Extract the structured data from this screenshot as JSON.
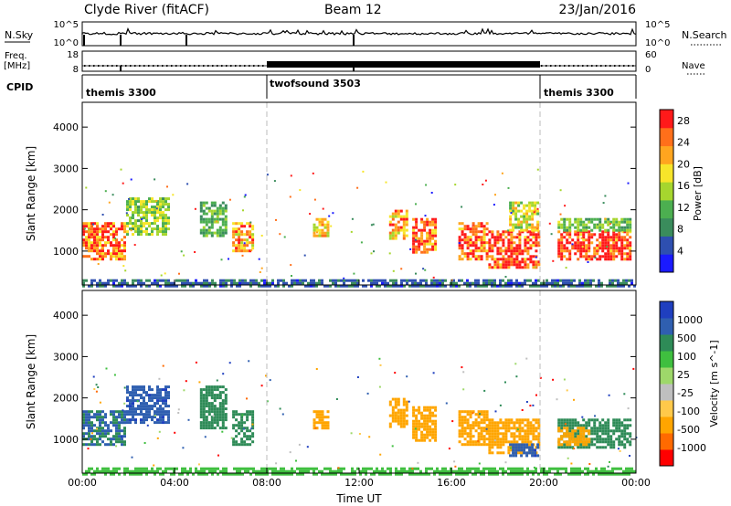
{
  "header": {
    "station": "Clyde River (fitACF)",
    "beam": "Beam 12",
    "date": "23/Jan/2016"
  },
  "strips": {
    "nsky_label": "N.Sky",
    "nsky_ticks": [
      "10^5",
      "10^0"
    ],
    "nsearch_label": "N.Search",
    "nsearch_ticks": [
      "10^5",
      "10^0"
    ],
    "freq_label_1": "Freq.",
    "freq_label_2": "[MHz]",
    "freq_ticks": [
      "18",
      "8"
    ],
    "nave_label": "Nave",
    "nave_ticks": [
      "60",
      "0"
    ],
    "cpid_label": "CPID",
    "cpid_segments": [
      {
        "label": "themis 3300",
        "start": 0,
        "end": 8
      },
      {
        "label": "twofsound 3503",
        "start": 8,
        "end": 20
      },
      {
        "label": "themis 3300",
        "start": 20,
        "end": 24
      }
    ]
  },
  "colors": {
    "power": [
      "#1a1aff",
      "#2e4fb0",
      "#3a8c5c",
      "#4caf50",
      "#a6d62e",
      "#f7e52a",
      "#ffa51f",
      "#ff6f1a",
      "#ff1a1a"
    ],
    "velocity": [
      "#ff0000",
      "#ff6a00",
      "#ffa500",
      "#ffc94a",
      "#bfbfbf",
      "#9ed86a",
      "#3fbf3f",
      "#2e8b57",
      "#2f5fb0",
      "#1f3fbf"
    ]
  },
  "chart_data": [
    {
      "type": "heatmap",
      "name": "power",
      "xlabel": "Time UT",
      "ylabel": "Slant Range [km]",
      "xlim": [
        0,
        24
      ],
      "ylim": [
        180,
        4600
      ],
      "x_ticks": [
        "00:00",
        "04:00",
        "08:00",
        "12:00",
        "16:00",
        "20:00",
        "00:00"
      ],
      "y_ticks": [
        1000,
        2000,
        3000,
        4000
      ],
      "colorbar_label": "Power [dB]",
      "colorbar_ticks": [
        "4",
        "8",
        "12",
        "16",
        "20",
        "24",
        "28"
      ],
      "colorbar_range": [
        0,
        30
      ],
      "regions": [
        {
          "t0": 0.0,
          "t1": 1.9,
          "r0": 800,
          "r1": 1700,
          "v": 25
        },
        {
          "t0": 1.9,
          "t1": 3.8,
          "r0": 1400,
          "r1": 2300,
          "v": 14
        },
        {
          "t0": 5.1,
          "t1": 6.2,
          "r0": 1400,
          "r1": 2200,
          "v": 12
        },
        {
          "t0": 6.5,
          "t1": 7.4,
          "r0": 1000,
          "r1": 1700,
          "v": 22
        },
        {
          "t0": 10.0,
          "t1": 10.6,
          "r0": 1400,
          "r1": 1800,
          "v": 20
        },
        {
          "t0": 13.3,
          "t1": 14.1,
          "r0": 1300,
          "r1": 2000,
          "v": 22
        },
        {
          "t0": 14.3,
          "t1": 15.3,
          "r0": 1000,
          "r1": 1800,
          "v": 24
        },
        {
          "t0": 16.3,
          "t1": 17.6,
          "r0": 800,
          "r1": 1700,
          "v": 26
        },
        {
          "t0": 17.6,
          "t1": 19.8,
          "r0": 600,
          "r1": 1500,
          "v": 27
        },
        {
          "t0": 18.5,
          "t1": 19.8,
          "r0": 1500,
          "r1": 2200,
          "v": 16
        },
        {
          "t0": 20.6,
          "t1": 23.8,
          "r0": 800,
          "r1": 1500,
          "v": 28
        },
        {
          "t0": 20.6,
          "t1": 23.8,
          "r0": 1500,
          "r1": 1800,
          "v": 13
        },
        {
          "t0": 0.0,
          "t1": 24.0,
          "r0": 180,
          "r1": 320,
          "v": 6
        }
      ]
    },
    {
      "type": "heatmap",
      "name": "velocity",
      "xlabel": "Time UT",
      "ylabel": "Slant Range [km]",
      "xlim": [
        0,
        24
      ],
      "ylim": [
        180,
        4600
      ],
      "x_ticks": [
        "00:00",
        "04:00",
        "08:00",
        "12:00",
        "16:00",
        "20:00",
        "00:00"
      ],
      "y_ticks": [
        1000,
        2000,
        3000,
        4000
      ],
      "colorbar_label": "Velocity [m s^-1]",
      "colorbar_ticks": [
        "1000",
        "500",
        "100",
        "25",
        "-25",
        "-100",
        "-500",
        "-1000"
      ],
      "regions": [
        {
          "t0": 0.0,
          "t1": 1.9,
          "r0": 900,
          "r1": 1700,
          "v": 500
        },
        {
          "t0": 1.9,
          "t1": 3.8,
          "r0": 1400,
          "r1": 2300,
          "v": 800
        },
        {
          "t0": 5.1,
          "t1": 6.2,
          "r0": 1300,
          "r1": 2300,
          "v": 300
        },
        {
          "t0": 6.5,
          "t1": 7.4,
          "r0": 900,
          "r1": 1700,
          "v": 300
        },
        {
          "t0": 10.0,
          "t1": 10.6,
          "r0": 1300,
          "r1": 1700,
          "v": -300
        },
        {
          "t0": 13.3,
          "t1": 14.1,
          "r0": 1300,
          "r1": 2000,
          "v": -300
        },
        {
          "t0": 14.3,
          "t1": 15.3,
          "r0": 1000,
          "r1": 1800,
          "v": -300
        },
        {
          "t0": 16.3,
          "t1": 17.6,
          "r0": 900,
          "r1": 1700,
          "v": -300
        },
        {
          "t0": 17.6,
          "t1": 19.8,
          "r0": 700,
          "r1": 1500,
          "v": -200
        },
        {
          "t0": 18.5,
          "t1": 19.8,
          "r0": 600,
          "r1": 900,
          "v": 800
        },
        {
          "t0": 20.6,
          "t1": 23.8,
          "r0": 800,
          "r1": 1500,
          "v": 200
        },
        {
          "t0": 20.6,
          "t1": 22.0,
          "r0": 900,
          "r1": 1300,
          "v": -300
        },
        {
          "t0": 0.0,
          "t1": 24.0,
          "r0": 180,
          "r1": 320,
          "v": 50
        }
      ]
    }
  ]
}
